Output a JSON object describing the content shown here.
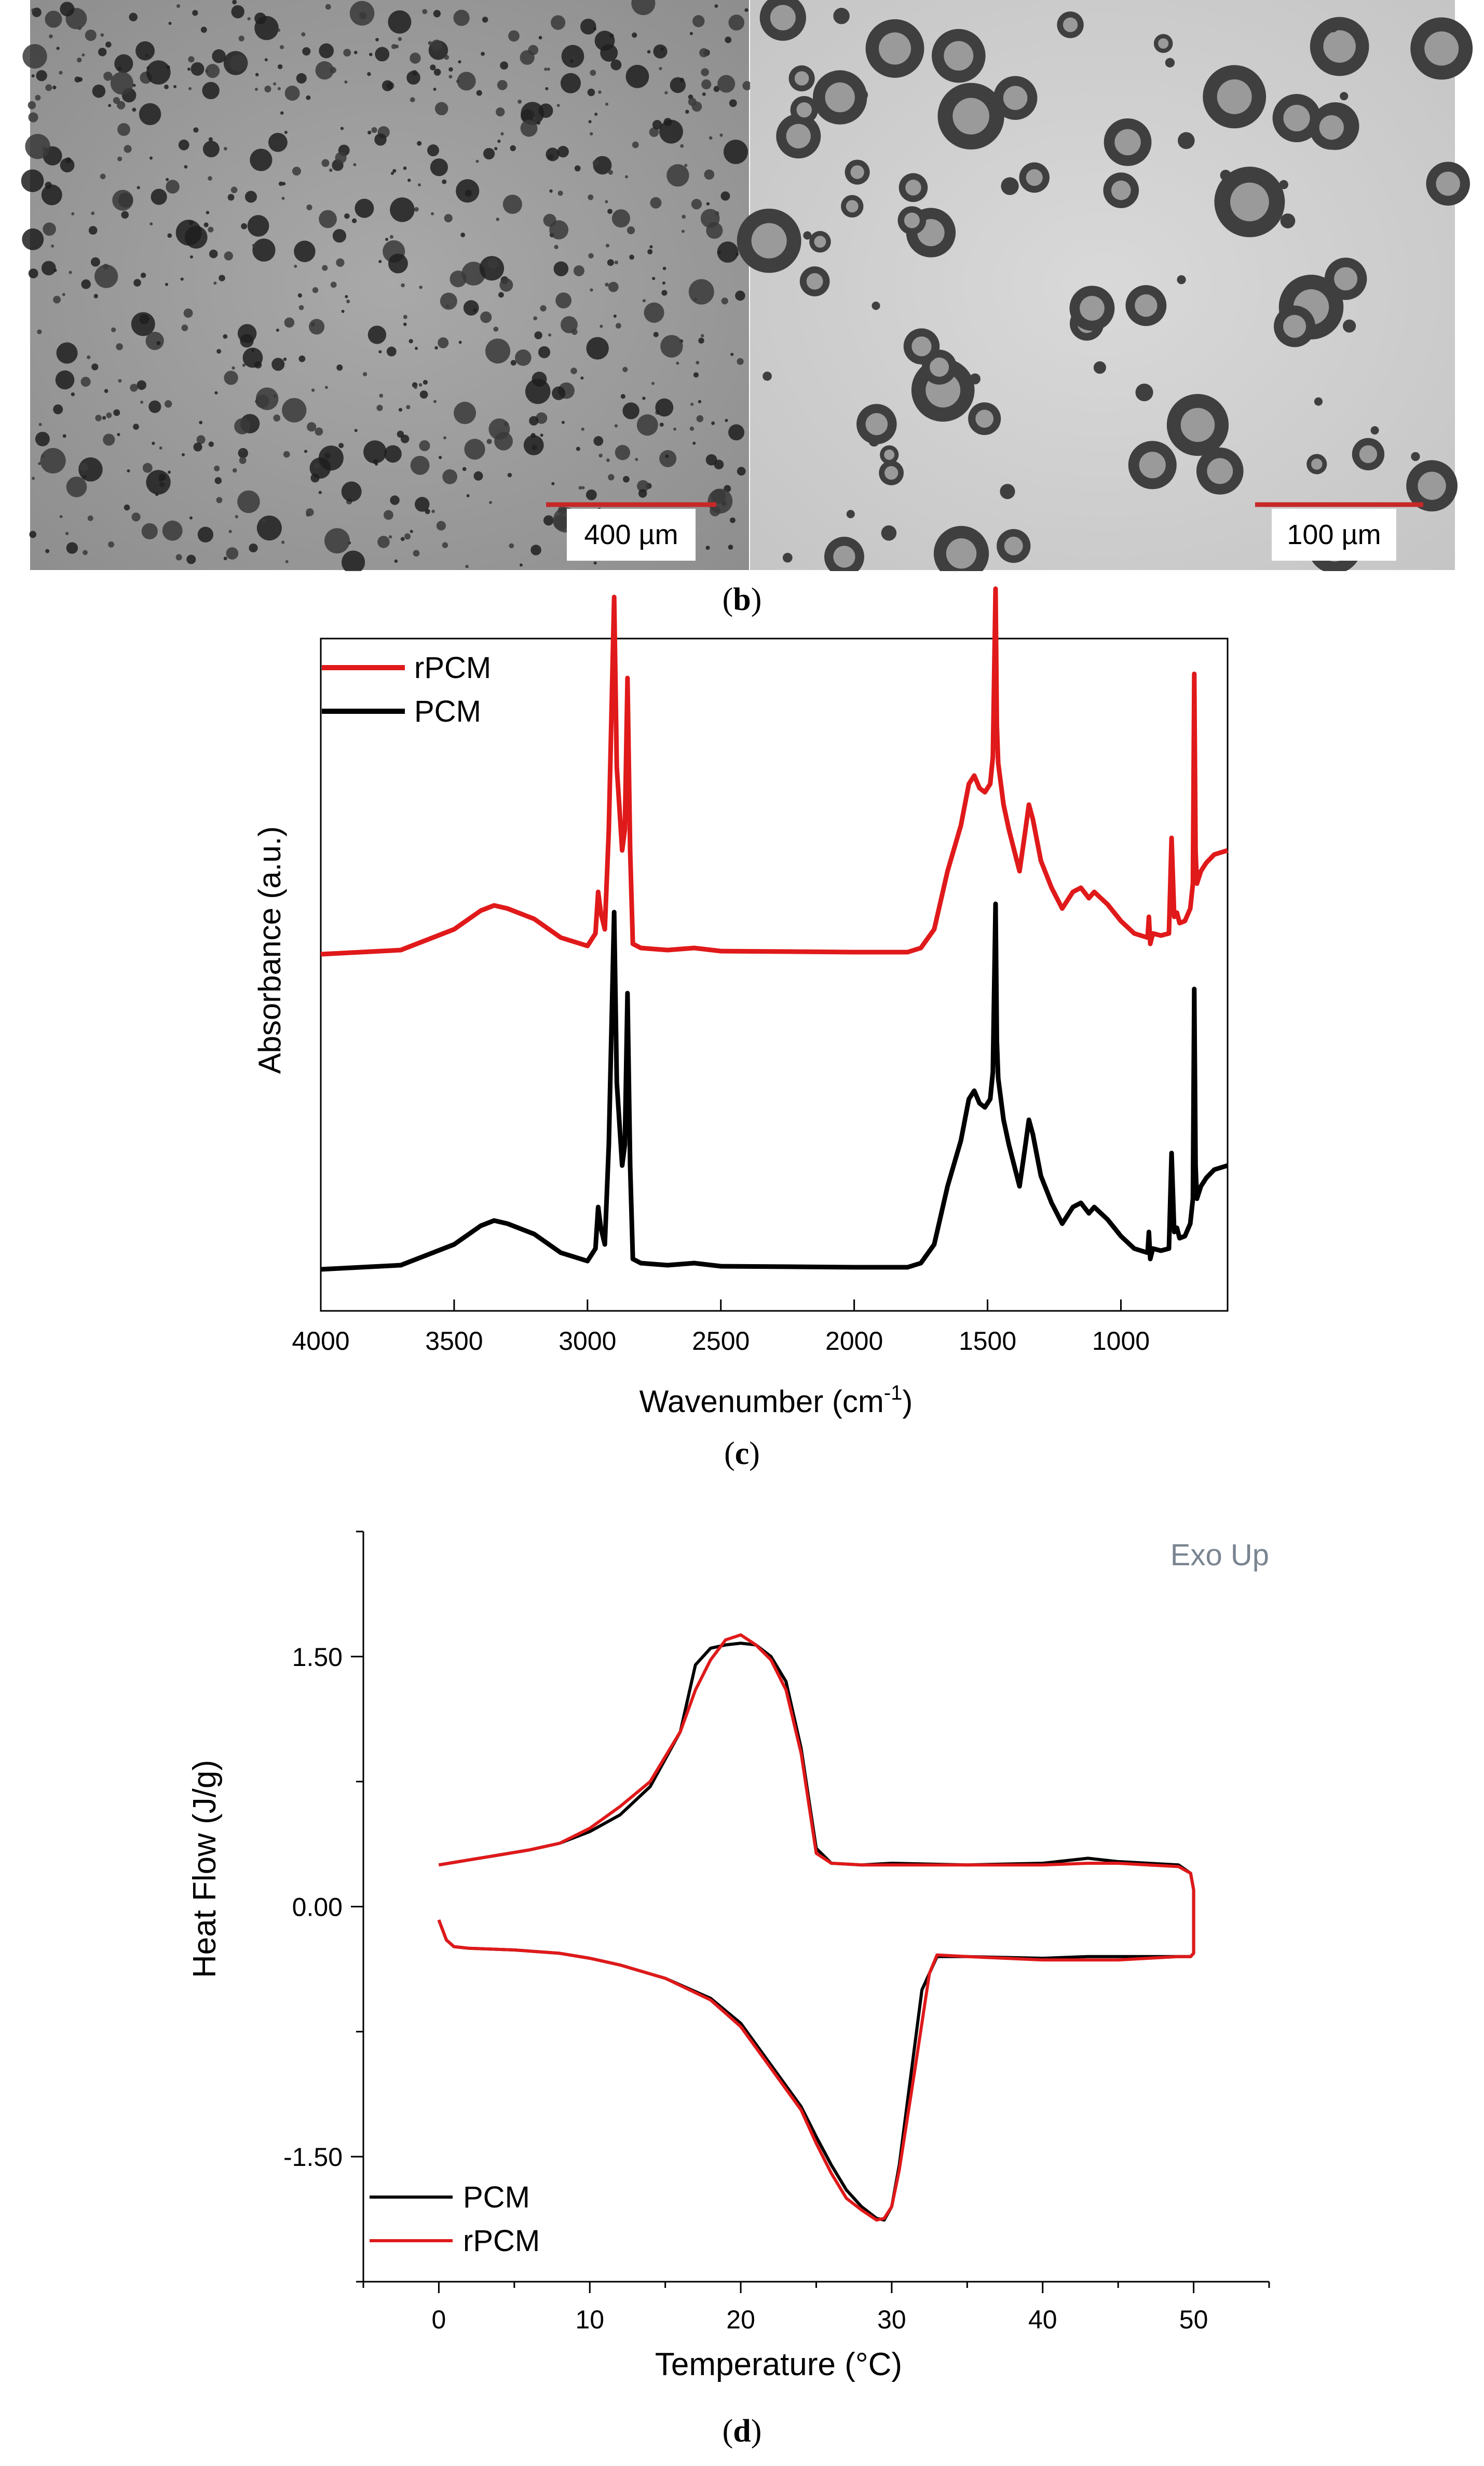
{
  "panel_b": {
    "label": "b",
    "images": [
      {
        "scale_bar_label": "400 µm"
      },
      {
        "scale_bar_label": "100 µm"
      }
    ],
    "scale_bar_color": "#c62828"
  },
  "panel_c": {
    "label": "c"
  },
  "panel_d": {
    "label": "d"
  },
  "chart_data": [
    {
      "type": "line",
      "panel": "c",
      "xlabel": "Wavenumber (cm-1)",
      "ylabel": "Absorbance (a.u.)",
      "xlim": [
        4000,
        600
      ],
      "x_reversed": true,
      "x_ticks": [
        4000,
        3500,
        3000,
        2500,
        2000,
        1500,
        1000
      ],
      "y_ticks": [],
      "grid": false,
      "legend_position": "top-left",
      "legend": [
        {
          "name": "rPCM",
          "color": "#e0191a"
        },
        {
          "name": "PCM",
          "color": "#000000"
        }
      ],
      "series": [
        {
          "name": "rPCM",
          "color": "#e0191a",
          "offset": 1.0,
          "x": [
            4000,
            3700,
            3500,
            3400,
            3350,
            3300,
            3200,
            3100,
            3000,
            2970,
            2960,
            2950,
            2935,
            2920,
            2900,
            2890,
            2870,
            2860,
            2850,
            2840,
            2830,
            2800,
            2700,
            2600,
            2500,
            2000,
            1800,
            1750,
            1700,
            1650,
            1600,
            1570,
            1550,
            1530,
            1510,
            1490,
            1480,
            1470,
            1465,
            1460,
            1440,
            1420,
            1400,
            1380,
            1360,
            1345,
            1330,
            1300,
            1260,
            1220,
            1180,
            1150,
            1120,
            1100,
            1050,
            1000,
            950,
            900,
            895,
            890,
            880,
            850,
            820,
            810,
            800,
            790,
            780,
            760,
            740,
            730,
            725,
            720,
            715,
            710,
            700,
            680,
            650,
            600
          ],
          "y": [
            0.0,
            0.02,
            0.12,
            0.21,
            0.235,
            0.22,
            0.17,
            0.08,
            0.04,
            0.1,
            0.3,
            0.2,
            0.12,
            0.6,
            1.72,
            0.9,
            0.5,
            0.6,
            1.33,
            0.5,
            0.05,
            0.03,
            0.02,
            0.03,
            0.015,
            0.01,
            0.01,
            0.03,
            0.12,
            0.4,
            0.62,
            0.82,
            0.86,
            0.8,
            0.78,
            0.82,
            0.95,
            1.76,
            1.1,
            0.92,
            0.72,
            0.6,
            0.5,
            0.4,
            0.58,
            0.72,
            0.65,
            0.45,
            0.32,
            0.22,
            0.3,
            0.32,
            0.27,
            0.3,
            0.24,
            0.16,
            0.1,
            0.08,
            0.18,
            0.05,
            0.1,
            0.09,
            0.1,
            0.56,
            0.18,
            0.2,
            0.15,
            0.16,
            0.22,
            0.34,
            1.35,
            0.5,
            0.34,
            0.36,
            0.4,
            0.44,
            0.48,
            0.5
          ]
        },
        {
          "name": "PCM",
          "color": "#000000",
          "offset": 0.0,
          "x": [
            4000,
            3700,
            3500,
            3400,
            3350,
            3300,
            3200,
            3100,
            3000,
            2970,
            2960,
            2950,
            2935,
            2920,
            2900,
            2890,
            2870,
            2860,
            2850,
            2840,
            2830,
            2800,
            2700,
            2600,
            2500,
            2000,
            1800,
            1750,
            1700,
            1650,
            1600,
            1570,
            1550,
            1530,
            1510,
            1490,
            1480,
            1470,
            1465,
            1460,
            1440,
            1420,
            1400,
            1380,
            1360,
            1345,
            1330,
            1300,
            1260,
            1220,
            1180,
            1150,
            1120,
            1100,
            1050,
            1000,
            950,
            900,
            895,
            890,
            880,
            850,
            820,
            810,
            800,
            790,
            780,
            760,
            740,
            730,
            725,
            720,
            715,
            710,
            700,
            680,
            650,
            600
          ],
          "y": [
            0.0,
            0.02,
            0.12,
            0.21,
            0.235,
            0.22,
            0.17,
            0.08,
            0.04,
            0.1,
            0.3,
            0.2,
            0.12,
            0.6,
            1.72,
            0.9,
            0.5,
            0.6,
            1.33,
            0.5,
            0.05,
            0.03,
            0.02,
            0.03,
            0.015,
            0.01,
            0.01,
            0.03,
            0.12,
            0.4,
            0.62,
            0.82,
            0.86,
            0.8,
            0.78,
            0.82,
            0.95,
            1.76,
            1.1,
            0.92,
            0.72,
            0.6,
            0.5,
            0.4,
            0.58,
            0.72,
            0.65,
            0.45,
            0.32,
            0.22,
            0.3,
            0.32,
            0.27,
            0.3,
            0.24,
            0.16,
            0.1,
            0.08,
            0.18,
            0.05,
            0.1,
            0.09,
            0.1,
            0.56,
            0.18,
            0.2,
            0.15,
            0.16,
            0.22,
            0.34,
            1.35,
            0.5,
            0.34,
            0.36,
            0.4,
            0.44,
            0.48,
            0.5
          ]
        }
      ]
    },
    {
      "type": "line",
      "panel": "d",
      "xlabel": "Temperature (°C)",
      "ylabel": "Heat Flow (J/g)",
      "annotation": "Exo Up",
      "xlim": [
        -5,
        55
      ],
      "ylim": [
        -2.25,
        2.25
      ],
      "x_ticks": [
        0,
        10,
        20,
        30,
        40,
        50
      ],
      "y_ticks": [
        1.5,
        0.0,
        -1.5
      ],
      "y_tick_labels": [
        "1.50",
        "0.00",
        "-1.50"
      ],
      "grid": false,
      "legend_position": "bottom-left",
      "legend": [
        {
          "name": "PCM",
          "color": "#000000"
        },
        {
          "name": "rPCM",
          "color": "#e0191a"
        }
      ],
      "series": [
        {
          "name": "PCM",
          "color": "#000000",
          "x": [
            0,
            2,
            4,
            6,
            8,
            10,
            12,
            14,
            16,
            17,
            18,
            19,
            20,
            21,
            22,
            23,
            24,
            25,
            26,
            28,
            30,
            35,
            40,
            43,
            45,
            47,
            49,
            49.8,
            50,
            50,
            49.8,
            49,
            47,
            45,
            43,
            40,
            35,
            33,
            32,
            31,
            30.5,
            30,
            29.5,
            29,
            28,
            27,
            26,
            25,
            24,
            22,
            20,
            18,
            15,
            12,
            10,
            8,
            5,
            2,
            1,
            0.5,
            0
          ],
          "y": [
            0.25,
            0.28,
            0.31,
            0.34,
            0.38,
            0.45,
            0.55,
            0.72,
            1.05,
            1.45,
            1.55,
            1.57,
            1.58,
            1.57,
            1.5,
            1.35,
            0.95,
            0.35,
            0.26,
            0.25,
            0.26,
            0.25,
            0.26,
            0.29,
            0.27,
            0.26,
            0.25,
            0.2,
            0.1,
            -0.28,
            -0.3,
            -0.3,
            -0.3,
            -0.3,
            -0.3,
            -0.31,
            -0.3,
            -0.3,
            -0.5,
            -1.2,
            -1.55,
            -1.8,
            -1.88,
            -1.87,
            -1.8,
            -1.7,
            -1.55,
            -1.38,
            -1.2,
            -0.95,
            -0.7,
            -0.55,
            -0.43,
            -0.35,
            -0.31,
            -0.28,
            -0.26,
            -0.25,
            -0.24,
            -0.2,
            -0.08
          ]
        },
        {
          "name": "rPCM",
          "color": "#e0191a",
          "x": [
            0,
            2,
            4,
            6,
            8,
            10,
            12,
            14,
            16,
            17,
            18,
            19,
            20,
            21,
            22,
            23,
            24,
            25,
            26,
            28,
            30,
            35,
            40,
            43,
            45,
            47,
            49,
            49.8,
            50,
            50,
            49.8,
            49,
            47,
            45,
            43,
            40,
            35,
            33,
            32.5,
            31.5,
            30.5,
            30,
            29.5,
            29,
            28,
            27,
            26,
            25,
            24,
            22,
            20,
            18,
            15,
            12,
            10,
            8,
            5,
            2,
            1,
            0.5,
            0
          ],
          "y": [
            0.25,
            0.28,
            0.31,
            0.34,
            0.38,
            0.47,
            0.6,
            0.75,
            1.05,
            1.3,
            1.48,
            1.6,
            1.63,
            1.57,
            1.48,
            1.3,
            0.92,
            0.32,
            0.26,
            0.25,
            0.25,
            0.25,
            0.25,
            0.26,
            0.26,
            0.25,
            0.24,
            0.2,
            0.1,
            -0.28,
            -0.3,
            -0.3,
            -0.31,
            -0.32,
            -0.32,
            -0.32,
            -0.3,
            -0.29,
            -0.4,
            -1.0,
            -1.58,
            -1.8,
            -1.87,
            -1.88,
            -1.82,
            -1.75,
            -1.6,
            -1.42,
            -1.22,
            -0.97,
            -0.72,
            -0.56,
            -0.43,
            -0.35,
            -0.31,
            -0.28,
            -0.26,
            -0.25,
            -0.24,
            -0.2,
            -0.08
          ]
        }
      ]
    }
  ]
}
